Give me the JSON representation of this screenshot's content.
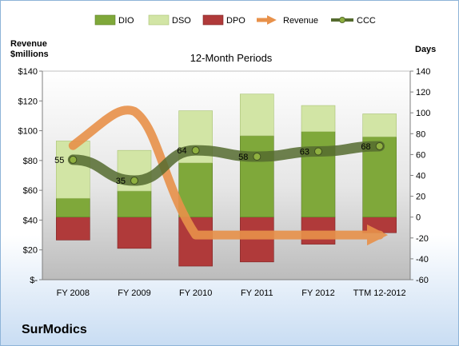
{
  "chart_data": {
    "type": "bar",
    "title": "12-Month Periods",
    "company": "SurModics",
    "y_left_label_line1": "Revenue",
    "y_left_label_line2": "$millions",
    "y_right_label": "Days",
    "categories": [
      "FY 2008",
      "FY 2009",
      "FY 2010",
      "FY 2011",
      "FY 2012",
      "TTM 12-2012"
    ],
    "y_left": {
      "min": 0,
      "max": 140,
      "step": 20,
      "tick_labels": [
        "$-",
        "$20",
        "$40",
        "$60",
        "$80",
        "$100",
        "$120",
        "$140"
      ]
    },
    "y_right": {
      "min": -60,
      "max": 140,
      "step": 20,
      "tick_labels": [
        "-60",
        "-40",
        "-20",
        "0",
        "20",
        "40",
        "60",
        "80",
        "100",
        "120",
        "140"
      ]
    },
    "series": [
      {
        "name": "DIO",
        "type": "stacked_bar",
        "axis": "right",
        "color": "#7fa83a",
        "values": [
          18,
          25,
          52,
          78,
          82,
          77
        ]
      },
      {
        "name": "DSO",
        "type": "stacked_bar",
        "axis": "right",
        "color": "#d2e5a5",
        "values": [
          55,
          39,
          50,
          40,
          25,
          22
        ]
      },
      {
        "name": "DPO",
        "type": "stacked_bar_negative",
        "axis": "right",
        "color": "#b03a3a",
        "values": [
          -22,
          -30,
          -47,
          -43,
          -26,
          -15
        ]
      },
      {
        "name": "Revenue",
        "type": "line",
        "axis": "left",
        "color": "#e8914a",
        "values": [
          90,
          113,
          30,
          30,
          30,
          30
        ]
      },
      {
        "name": "CCC",
        "type": "line",
        "axis": "right",
        "color": "#556b2f",
        "values": [
          55,
          35,
          64,
          58,
          63,
          68
        ],
        "labels": [
          "55",
          "35",
          "64",
          "58",
          "63",
          "68"
        ]
      }
    ],
    "legend": [
      "DIO",
      "DSO",
      "DPO",
      "Revenue",
      "CCC"
    ],
    "legend_position": "top",
    "grid": false
  }
}
